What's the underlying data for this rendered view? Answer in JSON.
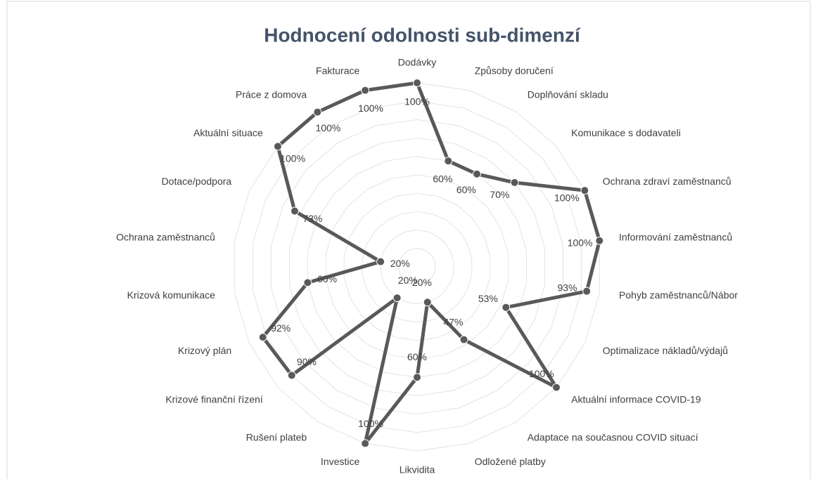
{
  "chart_data": {
    "type": "radar",
    "title": "Hodnocení odolnosti sub-dimenzí",
    "categories": [
      "Dodávky",
      "Způsoby doručení",
      "Doplňování skladu",
      "Komunikace s dodavateli",
      "Ochrana zdraví zaměstnanců",
      "Informování zaměstnanců",
      "Pohyb zaměstnanců/Nábor",
      "Optimalizace nákladů/výdajů",
      "Aktuální informace COVID-19",
      "Adaptace na současnou COVID situací",
      "Odložené platby",
      "Likvidita",
      "Investice",
      "Rušení plateb",
      "Krizové finanční řízení",
      "Krizový plán",
      "Krizová komunikace",
      "Ochrana zaměstnanců",
      "Dotace/podpora",
      "Aktuální situace",
      "Práce z domova",
      "Fakturace"
    ],
    "values": [
      100,
      60,
      60,
      70,
      100,
      100,
      93,
      53,
      100,
      47,
      20,
      60,
      100,
      20,
      90,
      92,
      60,
      20,
      73,
      100,
      100,
      100
    ],
    "value_labels": [
      "100%",
      "60%",
      "60%",
      "70%",
      "100%",
      "100%",
      "93%",
      "53%",
      "100%",
      "47%",
      "20%",
      "60%",
      "100%",
      "20%",
      "90%",
      "92%",
      "60%",
      "20%",
      "73%",
      "100%",
      "100%",
      "100%"
    ],
    "color": "#595959",
    "rlim": [
      0,
      100
    ],
    "rticks": [
      10,
      20,
      30,
      40,
      50,
      60,
      70,
      80,
      90,
      100
    ],
    "grid": true
  }
}
